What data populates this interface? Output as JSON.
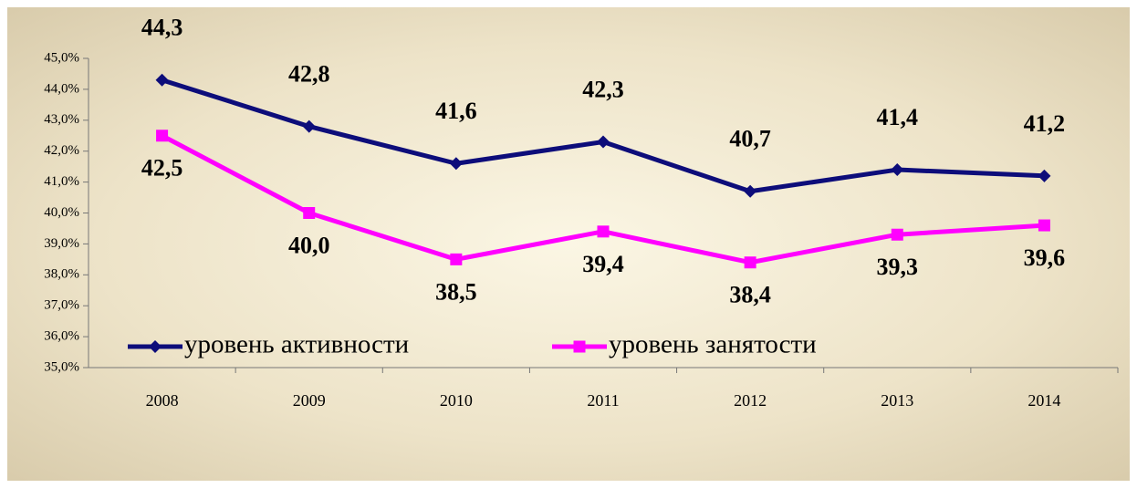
{
  "chart_data": {
    "type": "line",
    "categories": [
      "2008",
      "2009",
      "2010",
      "2011",
      "2012",
      "2013",
      "2014"
    ],
    "series": [
      {
        "name": "уровень активности",
        "color": "#0d0d7a",
        "marker": "diamond",
        "values": [
          44.3,
          42.8,
          41.6,
          42.3,
          40.7,
          41.4,
          41.2
        ],
        "value_labels": [
          "44,3",
          "42,8",
          "41,6",
          "42,3",
          "40,7",
          "41,4",
          "41,2"
        ]
      },
      {
        "name": "уровень занятости",
        "color": "#ff00ff",
        "marker": "square",
        "values": [
          42.5,
          40.0,
          38.5,
          39.4,
          38.4,
          39.3,
          39.6
        ],
        "value_labels": [
          "42,5",
          "40,0",
          "38,5",
          "39,4",
          "38,4",
          "39,3",
          "39,6"
        ]
      }
    ],
    "ylim": [
      35,
      45
    ],
    "yticks": [
      {
        "value": 35,
        "label": "35,0%"
      },
      {
        "value": 36,
        "label": "36,0%"
      },
      {
        "value": 37,
        "label": "37,0%"
      },
      {
        "value": 38,
        "label": "38,0%"
      },
      {
        "value": 39,
        "label": "39,0%"
      },
      {
        "value": 40,
        "label": "40,0%"
      },
      {
        "value": 41,
        "label": "41,0%"
      },
      {
        "value": 42,
        "label": "42,0%"
      },
      {
        "value": 43,
        "label": "43,0%"
      },
      {
        "value": 44,
        "label": "44,0%"
      },
      {
        "value": 45,
        "label": "45,0%"
      }
    ],
    "legend": "bottom-left"
  }
}
